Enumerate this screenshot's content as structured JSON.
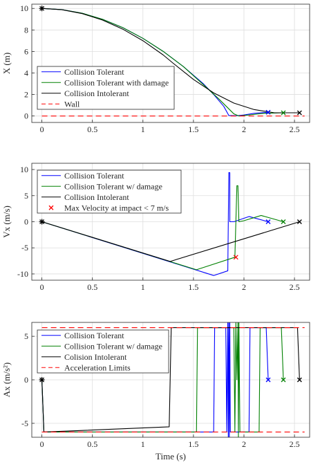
{
  "chart_data": [
    {
      "type": "line",
      "ylabel": "X (m)",
      "xlabel": "",
      "xlim": [
        -0.1,
        2.65
      ],
      "ylim": [
        -0.6,
        10.4
      ],
      "xticks": [
        0,
        0.5,
        1,
        1.5,
        2,
        2.5
      ],
      "xtick_labels": [
        "0",
        "0.5",
        "1",
        "1.5",
        "2",
        "2.5"
      ],
      "yticks": [
        0,
        2,
        4,
        6,
        8,
        10
      ],
      "ytick_labels": [
        "0",
        "2",
        "4",
        "6",
        "8",
        "10"
      ],
      "grid": true,
      "legend_position": "bottom-left",
      "series": [
        {
          "name": "Collision Tolerant",
          "color": "#0000ff",
          "dash": "solid",
          "x": [
            0,
            0.2,
            0.4,
            0.6,
            0.8,
            1.0,
            1.2,
            1.4,
            1.6,
            1.7,
            1.8,
            1.85,
            1.92,
            2.0,
            2.1,
            2.24
          ],
          "y": [
            10.0,
            9.89,
            9.55,
            8.99,
            8.22,
            7.22,
            6.01,
            4.6,
            2.98,
            2.0,
            0.9,
            0.05,
            0.02,
            0.1,
            0.25,
            0.35
          ]
        },
        {
          "name": "Collision Tolerant with damage",
          "color": "#008000",
          "dash": "solid",
          "x": [
            0,
            0.2,
            0.4,
            0.6,
            0.8,
            1.0,
            1.2,
            1.4,
            1.6,
            1.75,
            1.9,
            1.95,
            2.05,
            2.2,
            2.39
          ],
          "y": [
            10.0,
            9.89,
            9.55,
            8.99,
            8.22,
            7.22,
            6.01,
            4.6,
            2.9,
            1.6,
            0.2,
            0.0,
            0.1,
            0.25,
            0.3
          ]
        },
        {
          "name": "Collision Intolerant",
          "color": "#000000",
          "dash": "solid",
          "x": [
            0,
            0.2,
            0.4,
            0.6,
            0.8,
            1.0,
            1.2,
            1.3,
            1.5,
            1.7,
            1.9,
            2.1,
            2.3,
            2.55
          ],
          "y": [
            10.0,
            9.88,
            9.52,
            8.92,
            8.08,
            7.0,
            5.68,
            4.9,
            3.4,
            2.15,
            1.2,
            0.6,
            0.3,
            0.3
          ]
        },
        {
          "name": "Wall",
          "color": "#ff0000",
          "dash": "dashed",
          "x": [
            0,
            2.6
          ],
          "y": [
            0,
            0
          ]
        }
      ],
      "markers": [
        {
          "x": 0,
          "y": 10.0,
          "symbol": "*",
          "color": "#000000"
        },
        {
          "x": 2.24,
          "y": 0.35,
          "symbol": "x",
          "color": "#0000ff"
        },
        {
          "x": 2.39,
          "y": 0.3,
          "symbol": "x",
          "color": "#008000"
        },
        {
          "x": 2.55,
          "y": 0.3,
          "symbol": "x",
          "color": "#000000"
        }
      ]
    },
    {
      "type": "line",
      "ylabel": "Vx (m/s)",
      "xlabel": "",
      "xlim": [
        -0.1,
        2.65
      ],
      "ylim": [
        -11.2,
        11.2
      ],
      "xticks": [
        0,
        0.5,
        1,
        1.5,
        2,
        2.5
      ],
      "xtick_labels": [
        "0",
        "0.5",
        "1",
        "1.5",
        "2",
        "2.5"
      ],
      "yticks": [
        -10,
        -5,
        0,
        5,
        10
      ],
      "ytick_labels": [
        "-10",
        "-5",
        "0",
        "5",
        "10"
      ],
      "grid": true,
      "legend_position": "top-left",
      "series": [
        {
          "name": "Collision Tolerant",
          "color": "#0000ff",
          "dash": "solid",
          "x": [
            0,
            1.7,
            1.84,
            1.85,
            1.86,
            1.86,
            1.9,
            2.05,
            2.24
          ],
          "y": [
            0,
            -10.3,
            -9.4,
            9.4,
            9.4,
            0.0,
            0.0,
            1.0,
            0.0
          ]
        },
        {
          "name": "Collision Tolerant w/ damage",
          "color": "#008000",
          "dash": "solid",
          "x": [
            0,
            1.53,
            1.91,
            1.93,
            1.94,
            1.95,
            2.0,
            2.17,
            2.39
          ],
          "y": [
            0,
            -9.2,
            -6.8,
            6.9,
            6.9,
            0.0,
            0.2,
            1.2,
            0.0
          ]
        },
        {
          "name": "Collision Intolerant",
          "color": "#000000",
          "dash": "solid",
          "x": [
            0,
            1.27,
            2.55
          ],
          "y": [
            0,
            -7.6,
            0
          ]
        }
      ],
      "markers": [
        {
          "x": 0,
          "y": 0,
          "symbol": "*",
          "color": "#000000"
        },
        {
          "x": 1.92,
          "y": -6.8,
          "symbol": "x",
          "color": "#ff0000"
        },
        {
          "x": 2.24,
          "y": 0,
          "symbol": "x",
          "color": "#0000ff"
        },
        {
          "x": 2.39,
          "y": 0,
          "symbol": "x",
          "color": "#008000"
        },
        {
          "x": 2.55,
          "y": 0,
          "symbol": "x",
          "color": "#000000"
        }
      ],
      "legend_extra": [
        {
          "name": "Max Velocity at impact < 7 m/s",
          "color": "#ff0000",
          "symbol": "x"
        }
      ]
    },
    {
      "type": "line",
      "ylabel": "Ax (m/s²)",
      "xlabel": "Time (s)",
      "xlim": [
        -0.1,
        2.65
      ],
      "ylim": [
        -6.6,
        6.6
      ],
      "xticks": [
        0,
        0.5,
        1,
        1.5,
        2,
        2.5
      ],
      "xtick_labels": [
        "0",
        "0.5",
        "1",
        "1.5",
        "2",
        "2.5"
      ],
      "yticks": [
        -5,
        0,
        5
      ],
      "ytick_labels": [
        "-5",
        "0",
        "5"
      ],
      "grid": true,
      "legend_position": "top-left",
      "series": [
        {
          "name": "Collision Tolerant",
          "color": "#0000ff",
          "dash": "solid",
          "x": [
            0,
            0.02,
            1.7,
            1.71,
            1.82,
            1.83,
            1.84,
            1.845,
            1.85,
            1.855,
            1.86,
            1.865,
            1.87,
            1.9,
            2.05,
            2.06,
            2.22,
            2.24
          ],
          "y": [
            0,
            -6,
            -6,
            6,
            6,
            -6,
            6.6,
            -6.6,
            6.6,
            -6.6,
            6.6,
            -6,
            -6,
            -6,
            -6,
            6,
            6,
            0
          ]
        },
        {
          "name": "Collision Tolerant w/ damage",
          "color": "#008000",
          "dash": "solid",
          "x": [
            0,
            0.02,
            1.53,
            1.54,
            1.9,
            1.91,
            1.92,
            1.93,
            1.94,
            1.945,
            1.95,
            1.96,
            2.15,
            2.16,
            2.37,
            2.39
          ],
          "y": [
            0,
            -6,
            -6,
            6,
            6,
            -6,
            6.6,
            0,
            6.6,
            -6.6,
            6.6,
            -6,
            -6,
            6,
            6,
            0
          ]
        },
        {
          "name": "Colision Intolerant",
          "color": "#000000",
          "dash": "solid",
          "x": [
            0,
            0.02,
            1.26,
            1.28,
            2.53,
            2.55
          ],
          "y": [
            0,
            -6,
            -5.4,
            6,
            6,
            0
          ]
        },
        {
          "name": "Acceleration Limits",
          "color": "#ff0000",
          "dash": "dashed",
          "x": [
            0,
            2.6
          ],
          "y": [
            6,
            6
          ]
        },
        {
          "name": "",
          "color": "#ff0000",
          "dash": "dashed",
          "x": [
            0,
            2.6
          ],
          "y": [
            -6,
            -6
          ]
        }
      ],
      "markers": [
        {
          "x": 0,
          "y": 0,
          "symbol": "*",
          "color": "#000000"
        },
        {
          "x": 2.24,
          "y": 0,
          "symbol": "x",
          "color": "#0000ff"
        },
        {
          "x": 2.39,
          "y": 0,
          "symbol": "x",
          "color": "#008000"
        },
        {
          "x": 2.55,
          "y": 0,
          "symbol": "x",
          "color": "#000000"
        }
      ]
    }
  ]
}
